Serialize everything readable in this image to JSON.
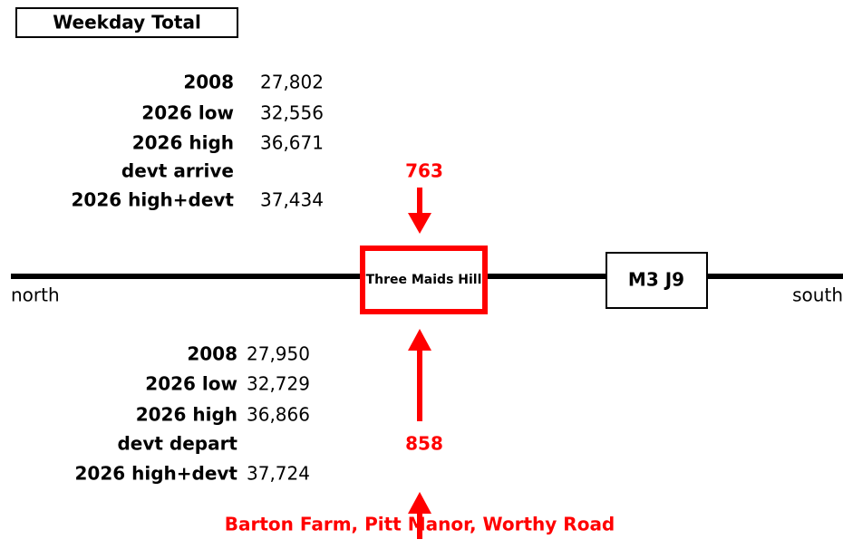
{
  "title": "Weekday Total",
  "north": {
    "rows": [
      {
        "label": "2008",
        "value": "27,802"
      },
      {
        "label": "2026 low",
        "value": "32,556"
      },
      {
        "label": "2026 high",
        "value": "36,671"
      },
      {
        "label": "devt arrive",
        "value": "763"
      },
      {
        "label": "2026 high+devt",
        "value": "37,434"
      }
    ]
  },
  "south": {
    "rows": [
      {
        "label": "2008",
        "value": "27,950"
      },
      {
        "label": "2026 low",
        "value": "32,729"
      },
      {
        "label": "2026 high",
        "value": "36,866"
      },
      {
        "label": "devt depart",
        "value": "858"
      },
      {
        "label": "2026 high+devt",
        "value": "37,724"
      }
    ]
  },
  "junctions": [
    "Three Maids Hill",
    "M3 J9"
  ],
  "directions": [
    "north",
    "south"
  ],
  "site": "Barton Farm, Pitt Manor, Worthy Road"
}
